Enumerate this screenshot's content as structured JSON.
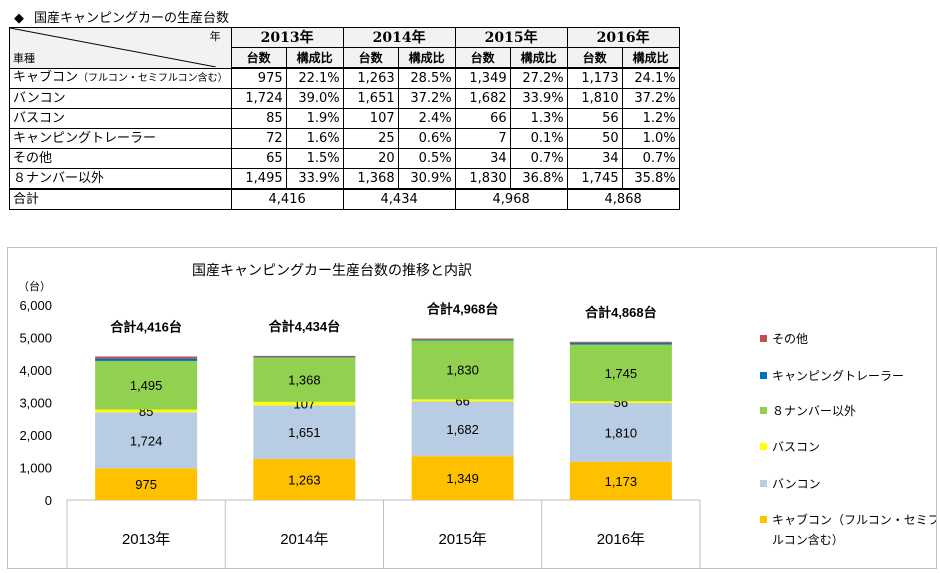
{
  "heading": {
    "icon": "diamond-icon",
    "text": "国産キャンピングカーの生産台数"
  },
  "table": {
    "corner_year": "年",
    "corner_type": "車種",
    "years": [
      "2013年",
      "2014年",
      "2015年",
      "2016年"
    ],
    "sub_headers": [
      "台数",
      "構成比"
    ],
    "rows": [
      {
        "name": "キャブコン",
        "note": "（フルコン・セミフルコン含む）",
        "cells": [
          "975",
          "22.1%",
          "1,263",
          "28.5%",
          "1,349",
          "27.2%",
          "1,173",
          "24.1%"
        ]
      },
      {
        "name": "バンコン",
        "cells": [
          "1,724",
          "39.0%",
          "1,651",
          "37.2%",
          "1,682",
          "33.9%",
          "1,810",
          "37.2%"
        ]
      },
      {
        "name": "バスコン",
        "cells": [
          "85",
          "1.9%",
          "107",
          "2.4%",
          "66",
          "1.3%",
          "56",
          "1.2%"
        ]
      },
      {
        "name": "キャンピングトレーラー",
        "cells": [
          "72",
          "1.6%",
          "25",
          "0.6%",
          "7",
          "0.1%",
          "50",
          "1.0%"
        ]
      },
      {
        "name": "その他",
        "cells": [
          "65",
          "1.5%",
          "20",
          "0.5%",
          "34",
          "0.7%",
          "34",
          "0.7%"
        ]
      },
      {
        "name": "８ナンバー以外",
        "cells": [
          "1,495",
          "33.9%",
          "1,368",
          "30.9%",
          "1,830",
          "36.8%",
          "1,745",
          "35.8%"
        ]
      }
    ],
    "total_label": "合計",
    "totals": [
      "4,416",
      "4,434",
      "4,968",
      "4,868"
    ]
  },
  "chart_data": {
    "type": "bar",
    "stacked": true,
    "title": "国産キャンピングカー生産台数の推移と内訳",
    "ylabel": "（台）",
    "ylim": [
      0,
      6000
    ],
    "yticks": [
      0,
      1000,
      2000,
      3000,
      4000,
      5000,
      6000
    ],
    "ytick_labels": [
      "0",
      "1,000",
      "2,000",
      "3,000",
      "4,000",
      "5,000",
      "6,000"
    ],
    "categories": [
      "2013年",
      "2014年",
      "2015年",
      "2016年"
    ],
    "series": [
      {
        "name": "キャブコン（フルコン・セミフルコン含む）",
        "color": "#ffc000",
        "values": [
          975,
          1263,
          1349,
          1173
        ],
        "labels": [
          "975",
          "1,263",
          "1,349",
          "1,173"
        ]
      },
      {
        "name": "バンコン",
        "color": "#b8cce4",
        "values": [
          1724,
          1651,
          1682,
          1810
        ],
        "labels": [
          "1,724",
          "1,651",
          "1,682",
          "1,810"
        ]
      },
      {
        "name": "バスコン",
        "color": "#ffff00",
        "values": [
          85,
          107,
          66,
          56
        ],
        "labels": [
          "85",
          "107",
          "66",
          "56"
        ]
      },
      {
        "name": "８ナンバー以外",
        "color": "#92d050",
        "values": [
          1495,
          1368,
          1830,
          1745
        ],
        "labels": [
          "1,495",
          "1,368",
          "1,830",
          "1,745"
        ]
      },
      {
        "name": "キャンピングトレーラー",
        "color": "#0070c0",
        "values": [
          72,
          25,
          7,
          50
        ]
      },
      {
        "name": "その他",
        "color": "#c0504d",
        "values": [
          65,
          20,
          34,
          34
        ]
      }
    ],
    "total_labels": [
      "合計4,416台",
      "合計4,434台",
      "合計4,968台",
      "合計4,868台"
    ],
    "legend": {
      "position": "right",
      "items": [
        {
          "text": "その他",
          "color": "#c0504d"
        },
        {
          "text": "キャンピングトレーラー",
          "color": "#0070c0"
        },
        {
          "text": "８ナンバー以外",
          "color": "#92d050"
        },
        {
          "text": "バスコン",
          "color": "#ffff00"
        },
        {
          "text": "バンコン",
          "color": "#b8cce4"
        },
        {
          "text": "キャブコン（フルコン・セミフ",
          "text2": "ルコン含む）",
          "color": "#ffc000"
        }
      ]
    }
  }
}
